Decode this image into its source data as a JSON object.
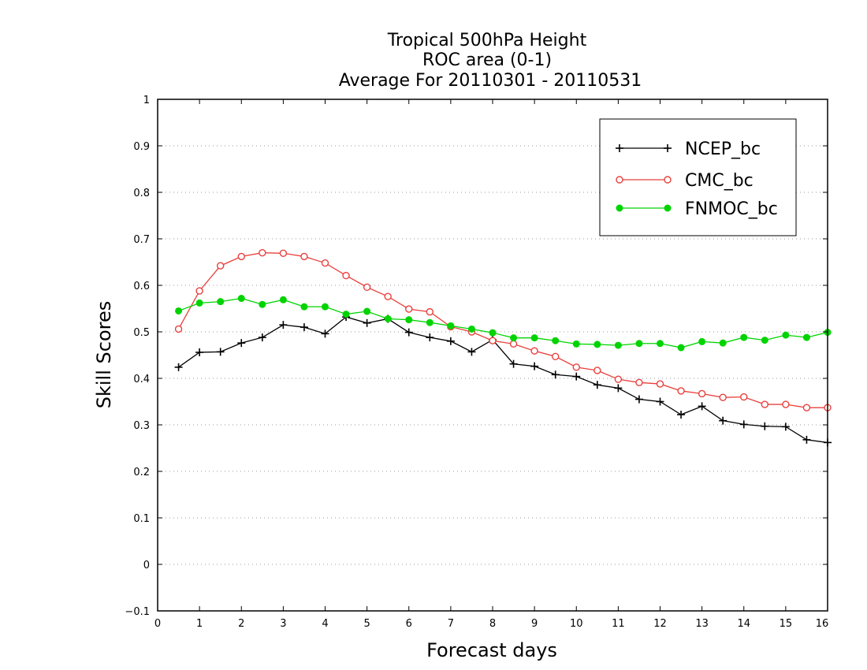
{
  "chart_data": {
    "type": "line",
    "title": [
      "Tropical 500hPa Height",
      "ROC area (0-1)",
      "Average For 20110301 - 20110531"
    ],
    "xlabel": "Forecast days",
    "ylabel": "Skill Scores",
    "xlim": [
      0,
      16
    ],
    "ylim": [
      -0.1,
      1
    ],
    "xticks": [
      0,
      1,
      2,
      3,
      4,
      5,
      6,
      7,
      8,
      9,
      10,
      11,
      12,
      13,
      14,
      15,
      16
    ],
    "yticks": [
      -0.1,
      0,
      0.1,
      0.2,
      0.3,
      0.4,
      0.5,
      0.6,
      0.7,
      0.8,
      0.9,
      1
    ],
    "ytick_labels": [
      "−0.1",
      "0",
      "0.1",
      "0.2",
      "0.3",
      "0.4",
      "0.5",
      "0.6",
      "0.7",
      "0.8",
      "0.9",
      "1"
    ],
    "grid": "horizontal dotted",
    "legend_position": "top-right",
    "x": [
      0.5,
      1,
      1.5,
      2,
      2.5,
      3,
      3.5,
      4,
      4.5,
      5,
      5.5,
      6,
      6.5,
      7,
      7.5,
      8,
      8.5,
      9,
      9.5,
      10,
      10.5,
      11,
      11.5,
      12,
      12.5,
      13,
      13.5,
      14,
      14.5,
      15,
      15.5,
      16
    ],
    "series": [
      {
        "name": "NCEP_bc",
        "color": "#000000",
        "marker": "plus",
        "values": [
          0.424,
          0.456,
          0.457,
          0.476,
          0.488,
          0.515,
          0.51,
          0.496,
          0.532,
          0.519,
          0.528,
          0.499,
          0.488,
          0.48,
          0.457,
          0.483,
          0.431,
          0.426,
          0.408,
          0.404,
          0.386,
          0.379,
          0.355,
          0.35,
          0.322,
          0.34,
          0.309,
          0.301,
          0.297,
          0.296,
          0.268,
          0.262
        ]
      },
      {
        "name": "CMC_bc",
        "color": "#e8403c",
        "marker": "open-circle",
        "values": [
          0.506,
          0.588,
          0.642,
          0.662,
          0.67,
          0.669,
          0.662,
          0.648,
          0.621,
          0.596,
          0.576,
          0.549,
          0.543,
          0.511,
          0.5,
          0.481,
          0.474,
          0.459,
          0.447,
          0.424,
          0.417,
          0.398,
          0.391,
          0.388,
          0.373,
          0.367,
          0.359,
          0.36,
          0.344,
          0.344,
          0.337,
          0.337
        ]
      },
      {
        "name": "FNMOC_bc",
        "color": "#00d400",
        "marker": "filled-circle",
        "values": [
          0.545,
          0.562,
          0.565,
          0.572,
          0.559,
          0.569,
          0.554,
          0.554,
          0.538,
          0.544,
          0.528,
          0.526,
          0.52,
          0.513,
          0.506,
          0.498,
          0.487,
          0.487,
          0.481,
          0.474,
          0.473,
          0.471,
          0.475,
          0.475,
          0.466,
          0.479,
          0.476,
          0.488,
          0.482,
          0.493,
          0.488,
          0.499
        ]
      }
    ]
  }
}
